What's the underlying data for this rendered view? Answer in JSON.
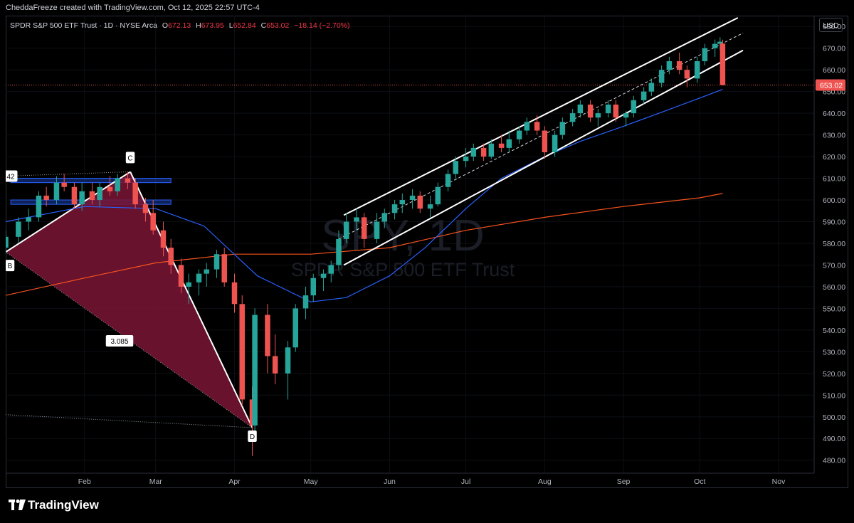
{
  "header": {
    "attribution": "CheddaFreeze created with TradingView.com, Oct 12, 2025 22:57 UTC-4"
  },
  "legend": {
    "symbol": "SPDR S&P 500 ETF Trust · 1D · NYSE Arca",
    "open_label": "O",
    "open": "672.13",
    "high_label": "H",
    "high": "673.95",
    "low_label": "L",
    "low": "652.84",
    "close_label": "C",
    "close": "653.02",
    "change": "−18.14 (−2.70%)"
  },
  "currency": "USD",
  "brand": "TradingView",
  "chart_data": {
    "type": "candlestick",
    "ticker_watermark": "SPY, 1D",
    "name_watermark": "SPDR S&P 500 ETF Trust",
    "y_ticks": [
      480,
      490,
      500,
      510,
      520,
      530,
      540,
      550,
      560,
      570,
      580,
      590,
      600,
      610,
      620,
      630,
      640,
      650,
      660,
      670,
      680
    ],
    "ylim": [
      474,
      685
    ],
    "x_ticks": [
      {
        "label": "Feb",
        "date": "2025-02-01"
      },
      {
        "label": "Mar",
        "date": "2025-03-01"
      },
      {
        "label": "Apr",
        "date": "2025-04-01"
      },
      {
        "label": "May",
        "date": "2025-05-01"
      },
      {
        "label": "Jun",
        "date": "2025-06-01"
      },
      {
        "label": "Jul",
        "date": "2025-07-01"
      },
      {
        "label": "Aug",
        "date": "2025-08-01"
      },
      {
        "label": "Sep",
        "date": "2025-09-01"
      },
      {
        "label": "Oct",
        "date": "2025-10-01"
      },
      {
        "label": "Nov",
        "date": "2025-11-01"
      }
    ],
    "xlim": [
      "2025-01-01",
      "2025-11-15"
    ],
    "last_price": 653.02,
    "last_price_label": "653.02",
    "colors": {
      "up": "#26a69a",
      "down": "#ef5350",
      "ma_fast": "#2962ff",
      "ma_slow": "#f7531e",
      "pattern_fill": "#7a1535"
    },
    "moving_average_fast": [
      [
        "2025-01-01",
        590
      ],
      [
        "2025-02-01",
        597
      ],
      [
        "2025-03-01",
        596
      ],
      [
        "2025-03-20",
        588
      ],
      [
        "2025-04-10",
        565
      ],
      [
        "2025-05-01",
        553
      ],
      [
        "2025-05-15",
        555
      ],
      [
        "2025-06-01",
        565
      ],
      [
        "2025-06-15",
        578
      ],
      [
        "2025-07-01",
        596
      ],
      [
        "2025-07-15",
        610
      ],
      [
        "2025-08-01",
        620
      ],
      [
        "2025-08-15",
        627
      ],
      [
        "2025-09-01",
        634
      ],
      [
        "2025-09-15",
        640
      ],
      [
        "2025-10-01",
        647
      ],
      [
        "2025-10-10",
        651
      ]
    ],
    "moving_average_slow": [
      [
        "2025-01-01",
        556
      ],
      [
        "2025-02-01",
        564
      ],
      [
        "2025-03-01",
        571
      ],
      [
        "2025-04-01",
        575
      ],
      [
        "2025-05-01",
        575
      ],
      [
        "2025-06-01",
        578
      ],
      [
        "2025-07-01",
        586
      ],
      [
        "2025-08-01",
        592
      ],
      [
        "2025-09-01",
        597
      ],
      [
        "2025-10-01",
        601
      ],
      [
        "2025-10-10",
        603
      ]
    ],
    "harmonic_pattern": {
      "points": [
        {
          "label": "B",
          "date": "2025-01-01",
          "price": 576
        },
        {
          "label": "C",
          "date": "2025-02-19",
          "price": 613
        },
        {
          "label": "D",
          "date": "2025-04-08",
          "price": 495
        }
      ],
      "ratio_label": "3.085",
      "edge_label": "42"
    },
    "channel": {
      "upper": [
        [
          "2025-05-14",
          593
        ],
        [
          "2025-10-16",
          684
        ]
      ],
      "middle": [
        [
          "2025-05-12",
          582
        ],
        [
          "2025-10-18",
          677
        ]
      ],
      "lower": [
        [
          "2025-05-14",
          570
        ],
        [
          "2025-10-18",
          669
        ]
      ]
    },
    "zones": [
      {
        "from": "2025-01-03",
        "to": "2025-03-07",
        "low": 608,
        "high": 610
      },
      {
        "from": "2025-01-03",
        "to": "2025-03-07",
        "low": 598,
        "high": 600
      }
    ],
    "candles": [
      {
        "d": "2025-01-01",
        "o": 578,
        "h": 586,
        "l": 575,
        "c": 583
      },
      {
        "d": "2025-01-06",
        "o": 583,
        "h": 592,
        "l": 580,
        "c": 590
      },
      {
        "d": "2025-01-10",
        "o": 590,
        "h": 596,
        "l": 586,
        "c": 592
      },
      {
        "d": "2025-01-14",
        "o": 592,
        "h": 604,
        "l": 590,
        "c": 602
      },
      {
        "d": "2025-01-17",
        "o": 602,
        "h": 606,
        "l": 597,
        "c": 600
      },
      {
        "d": "2025-01-21",
        "o": 600,
        "h": 611,
        "l": 598,
        "c": 608
      },
      {
        "d": "2025-01-24",
        "o": 608,
        "h": 612,
        "l": 604,
        "c": 606
      },
      {
        "d": "2025-01-28",
        "o": 606,
        "h": 608,
        "l": 596,
        "c": 598
      },
      {
        "d": "2025-01-31",
        "o": 598,
        "h": 608,
        "l": 595,
        "c": 604
      },
      {
        "d": "2025-02-04",
        "o": 604,
        "h": 608,
        "l": 598,
        "c": 600
      },
      {
        "d": "2025-02-07",
        "o": 600,
        "h": 608,
        "l": 597,
        "c": 606
      },
      {
        "d": "2025-02-11",
        "o": 606,
        "h": 611,
        "l": 602,
        "c": 604
      },
      {
        "d": "2025-02-14",
        "o": 604,
        "h": 612,
        "l": 602,
        "c": 610
      },
      {
        "d": "2025-02-18",
        "o": 610,
        "h": 613,
        "l": 605,
        "c": 608
      },
      {
        "d": "2025-02-21",
        "o": 608,
        "h": 610,
        "l": 596,
        "c": 598
      },
      {
        "d": "2025-02-25",
        "o": 598,
        "h": 601,
        "l": 590,
        "c": 594
      },
      {
        "d": "2025-02-28",
        "o": 594,
        "h": 600,
        "l": 584,
        "c": 586
      },
      {
        "d": "2025-03-04",
        "o": 586,
        "h": 590,
        "l": 574,
        "c": 578
      },
      {
        "d": "2025-03-07",
        "o": 578,
        "h": 582,
        "l": 566,
        "c": 570
      },
      {
        "d": "2025-03-11",
        "o": 570,
        "h": 573,
        "l": 557,
        "c": 560
      },
      {
        "d": "2025-03-14",
        "o": 560,
        "h": 566,
        "l": 552,
        "c": 562
      },
      {
        "d": "2025-03-18",
        "o": 562,
        "h": 568,
        "l": 556,
        "c": 566
      },
      {
        "d": "2025-03-21",
        "o": 566,
        "h": 571,
        "l": 560,
        "c": 568
      },
      {
        "d": "2025-03-25",
        "o": 568,
        "h": 577,
        "l": 564,
        "c": 575
      },
      {
        "d": "2025-03-28",
        "o": 575,
        "h": 578,
        "l": 560,
        "c": 562
      },
      {
        "d": "2025-04-01",
        "o": 562,
        "h": 566,
        "l": 548,
        "c": 552
      },
      {
        "d": "2025-04-04",
        "o": 552,
        "h": 556,
        "l": 505,
        "c": 508
      },
      {
        "d": "2025-04-08",
        "o": 508,
        "h": 514,
        "l": 482,
        "c": 496
      },
      {
        "d": "2025-04-09",
        "o": 496,
        "h": 550,
        "l": 492,
        "c": 547
      },
      {
        "d": "2025-04-14",
        "o": 547,
        "h": 552,
        "l": 520,
        "c": 528
      },
      {
        "d": "2025-04-17",
        "o": 528,
        "h": 538,
        "l": 515,
        "c": 520
      },
      {
        "d": "2025-04-22",
        "o": 520,
        "h": 535,
        "l": 508,
        "c": 532
      },
      {
        "d": "2025-04-25",
        "o": 532,
        "h": 552,
        "l": 530,
        "c": 550
      },
      {
        "d": "2025-04-29",
        "o": 550,
        "h": 560,
        "l": 545,
        "c": 556
      },
      {
        "d": "2025-05-02",
        "o": 556,
        "h": 566,
        "l": 553,
        "c": 564
      },
      {
        "d": "2025-05-06",
        "o": 564,
        "h": 568,
        "l": 558,
        "c": 566
      },
      {
        "d": "2025-05-09",
        "o": 566,
        "h": 572,
        "l": 562,
        "c": 570
      },
      {
        "d": "2025-05-12",
        "o": 570,
        "h": 586,
        "l": 568,
        "c": 582
      },
      {
        "d": "2025-05-15",
        "o": 582,
        "h": 594,
        "l": 580,
        "c": 590
      },
      {
        "d": "2025-05-19",
        "o": 590,
        "h": 596,
        "l": 586,
        "c": 592
      },
      {
        "d": "2025-05-22",
        "o": 592,
        "h": 594,
        "l": 578,
        "c": 582
      },
      {
        "d": "2025-05-27",
        "o": 582,
        "h": 594,
        "l": 580,
        "c": 590
      },
      {
        "d": "2025-05-30",
        "o": 590,
        "h": 596,
        "l": 587,
        "c": 594
      },
      {
        "d": "2025-06-03",
        "o": 594,
        "h": 600,
        "l": 591,
        "c": 598
      },
      {
        "d": "2025-06-06",
        "o": 598,
        "h": 603,
        "l": 594,
        "c": 600
      },
      {
        "d": "2025-06-10",
        "o": 600,
        "h": 605,
        "l": 596,
        "c": 602
      },
      {
        "d": "2025-06-13",
        "o": 602,
        "h": 604,
        "l": 594,
        "c": 596
      },
      {
        "d": "2025-06-17",
        "o": 596,
        "h": 602,
        "l": 592,
        "c": 598
      },
      {
        "d": "2025-06-20",
        "o": 598,
        "h": 608,
        "l": 597,
        "c": 606
      },
      {
        "d": "2025-06-24",
        "o": 606,
        "h": 614,
        "l": 604,
        "c": 612
      },
      {
        "d": "2025-06-27",
        "o": 612,
        "h": 620,
        "l": 610,
        "c": 618
      },
      {
        "d": "2025-07-01",
        "o": 618,
        "h": 624,
        "l": 615,
        "c": 620
      },
      {
        "d": "2025-07-04",
        "o": 620,
        "h": 626,
        "l": 618,
        "c": 624
      },
      {
        "d": "2025-07-08",
        "o": 624,
        "h": 626,
        "l": 618,
        "c": 620
      },
      {
        "d": "2025-07-11",
        "o": 620,
        "h": 628,
        "l": 619,
        "c": 626
      },
      {
        "d": "2025-07-15",
        "o": 626,
        "h": 630,
        "l": 622,
        "c": 624
      },
      {
        "d": "2025-07-18",
        "o": 624,
        "h": 632,
        "l": 622,
        "c": 628
      },
      {
        "d": "2025-07-22",
        "o": 628,
        "h": 634,
        "l": 626,
        "c": 632
      },
      {
        "d": "2025-07-25",
        "o": 632,
        "h": 638,
        "l": 630,
        "c": 636
      },
      {
        "d": "2025-07-29",
        "o": 636,
        "h": 639,
        "l": 630,
        "c": 632
      },
      {
        "d": "2025-08-01",
        "o": 632,
        "h": 634,
        "l": 619,
        "c": 622
      },
      {
        "d": "2025-08-05",
        "o": 622,
        "h": 632,
        "l": 620,
        "c": 630
      },
      {
        "d": "2025-08-08",
        "o": 630,
        "h": 638,
        "l": 628,
        "c": 636
      },
      {
        "d": "2025-08-12",
        "o": 636,
        "h": 642,
        "l": 634,
        "c": 640
      },
      {
        "d": "2025-08-15",
        "o": 640,
        "h": 646,
        "l": 638,
        "c": 644
      },
      {
        "d": "2025-08-19",
        "o": 644,
        "h": 646,
        "l": 636,
        "c": 638
      },
      {
        "d": "2025-08-22",
        "o": 638,
        "h": 642,
        "l": 634,
        "c": 640
      },
      {
        "d": "2025-08-26",
        "o": 640,
        "h": 646,
        "l": 638,
        "c": 644
      },
      {
        "d": "2025-08-29",
        "o": 644,
        "h": 646,
        "l": 636,
        "c": 638
      },
      {
        "d": "2025-09-02",
        "o": 638,
        "h": 641,
        "l": 634,
        "c": 640
      },
      {
        "d": "2025-09-05",
        "o": 640,
        "h": 648,
        "l": 638,
        "c": 646
      },
      {
        "d": "2025-09-09",
        "o": 646,
        "h": 652,
        "l": 644,
        "c": 650
      },
      {
        "d": "2025-09-12",
        "o": 650,
        "h": 656,
        "l": 648,
        "c": 654
      },
      {
        "d": "2025-09-16",
        "o": 654,
        "h": 662,
        "l": 652,
        "c": 660
      },
      {
        "d": "2025-09-19",
        "o": 660,
        "h": 666,
        "l": 658,
        "c": 664
      },
      {
        "d": "2025-09-23",
        "o": 664,
        "h": 668,
        "l": 658,
        "c": 660
      },
      {
        "d": "2025-09-26",
        "o": 660,
        "h": 662,
        "l": 652,
        "c": 656
      },
      {
        "d": "2025-09-30",
        "o": 656,
        "h": 666,
        "l": 654,
        "c": 664
      },
      {
        "d": "2025-10-03",
        "o": 664,
        "h": 672,
        "l": 662,
        "c": 670
      },
      {
        "d": "2025-10-07",
        "o": 670,
        "h": 674,
        "l": 666,
        "c": 672
      },
      {
        "d": "2025-10-09",
        "o": 672,
        "h": 675,
        "l": 669,
        "c": 673
      },
      {
        "d": "2025-10-10",
        "o": 672.13,
        "h": 673.95,
        "l": 652.84,
        "c": 653.02
      }
    ]
  }
}
